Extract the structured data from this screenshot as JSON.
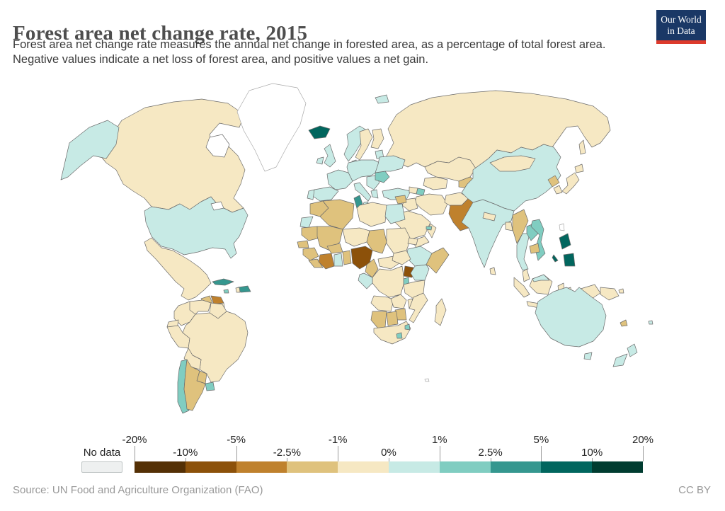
{
  "header": {
    "title": "Forest area net change rate, 2015",
    "subtitle_lines": [
      "Forest area net change rate measures the annual net change in forested area, as a percentage of total forest area.",
      "Negative values indicate a net loss of forest area, and positive values a net gain."
    ],
    "logo": {
      "line1": "Our World",
      "line2": "in Data",
      "bg_color": "#1a3866",
      "accent_color": "#dd3a2c"
    }
  },
  "footer": {
    "source": "Source: UN Food and Agriculture Organization (FAO)",
    "license": "CC BY"
  },
  "legend": {
    "no_data_label": "No data",
    "no_data_swatch_color": "#eef0f0",
    "tick_labels": [
      "-20%",
      "-10%",
      "-5%",
      "-2.5%",
      "-1%",
      "0%",
      "1%",
      "2.5%",
      "5%",
      "10%",
      "20%"
    ]
  },
  "chart_data": {
    "type": "choropleth-map",
    "title": "Forest area net change rate, 2015",
    "unit": "% per year",
    "no_data_color": "#ffffff",
    "bins": [
      {
        "range": "-20% to -10%",
        "color": "#543005"
      },
      {
        "range": "-10% to -5%",
        "color": "#8c510a"
      },
      {
        "range": "-5% to -2.5%",
        "color": "#bf812d"
      },
      {
        "range": "-2.5% to -1%",
        "color": "#dfc27d"
      },
      {
        "range": "-1% to 0%",
        "color": "#f6e8c3"
      },
      {
        "range": "0% to 1%",
        "color": "#c7eae5"
      },
      {
        "range": "1% to 2.5%",
        "color": "#80cdc1"
      },
      {
        "range": "2.5% to 5%",
        "color": "#35978f"
      },
      {
        "range": "5% to 10%",
        "color": "#01665e"
      },
      {
        "range": "10% to 20%",
        "color": "#003c30"
      }
    ],
    "countries": {
      "canada": "-1% to 0%",
      "united-states": "0% to 1%",
      "greenland": "No data",
      "mexico": "-1% to 0%",
      "guatemala": "-2.5% to -1%",
      "honduras": "-5% to -2.5%",
      "nicaragua": "-1% to 0%",
      "costa-rica": "2.5% to 5%",
      "panama": "1% to 2.5%",
      "cuba": "2.5% to 5%",
      "jamaica": "1% to 2.5%",
      "haiti": "-1% to 0%",
      "dominican-republic": "2.5% to 5%",
      "colombia": "-1% to 0%",
      "venezuela": "-1% to 0%",
      "guyana-suriname": "-1% to 0%",
      "ecuador": "-1% to 0%",
      "peru": "-1% to 0%",
      "brazil": "-1% to 0%",
      "bolivia": "-1% to 0%",
      "paraguay": "-2.5% to -1%",
      "argentina": "-2.5% to -1%",
      "chile": "1% to 2.5%",
      "uruguay": "1% to 2.5%",
      "iceland": "5% to 10%",
      "united-kingdom": "0% to 1%",
      "ireland": "0% to 1%",
      "norway": "0% to 1%",
      "sweden": "-1% to 0%",
      "finland": "-1% to 0%",
      "denmark": "0% to 1%",
      "baltics": "0% to 1%",
      "central-europe": "0% to 1%",
      "france": "0% to 1%",
      "spain": "0% to 1%",
      "portugal": "0% to 1%",
      "italy": "0% to 1%",
      "balkans": "0% to 1%",
      "greece": "0% to 1%",
      "romania": "1% to 2.5%",
      "ukraine": "0% to 1%",
      "turkey": "0% to 1%",
      "georgia-armenia": "-1% to 0%",
      "azerbaijan": "1% to 2.5%",
      "svalbard": "0% to 1%",
      "russia": "-1% to 0%",
      "kazakhstan": "-1% to 0%",
      "uzbekistan-turkmenistan": "-1% to 0%",
      "kyrgyzstan-tajikistan": "-2.5% to -1%",
      "afghanistan": "-1% to 0%",
      "iran": "-1% to 0%",
      "iraq": "-1% to 0%",
      "syria": "-2.5% to -1%",
      "israel": "1% to 2.5%",
      "jordan": "-1% to 0%",
      "saudi-arabia": "-1% to 0%",
      "yemen": "-1% to 0%",
      "oman": "-1% to 0%",
      "united-arab-emirates": "1% to 2.5%",
      "pakistan": "-5% to -2.5%",
      "india": "0% to 1%",
      "nepal": "-1% to 0%",
      "bangladesh": "-1% to 0%",
      "sri-lanka": "-1% to 0%",
      "china": "0% to 1%",
      "mongolia": "-1% to 0%",
      "north-korea": "-2.5% to -1%",
      "south-korea": "-1% to 0%",
      "japan": "-1% to 0%",
      "taiwan": "No data",
      "myanmar": "-2.5% to -1%",
      "thailand": "0% to 1%",
      "laos": "1% to 2.5%",
      "cambodia": "-2.5% to -1%",
      "vietnam": "1% to 2.5%",
      "malaysia": "-1% to 0%",
      "malaysia-borneo": "0% to 1%",
      "indonesia": "-1% to 0%",
      "philippines": "5% to 10%",
      "papua-new-guinea": "-1% to 0%",
      "australia": "0% to 1%",
      "new-zealand": "0% to 1%",
      "new-caledonia": "-2.5% to -1%",
      "fiji": "0% to 1%",
      "solomon-islands": "-1% to 0%",
      "morocco": "-2.5% to -1%",
      "western-sahara": "0% to 1%",
      "algeria": "-2.5% to -1%",
      "tunisia": "2.5% to 5%",
      "libya": "-1% to 0%",
      "egypt": "0% to 1%",
      "mauritania": "-2.5% to -1%",
      "mali": "-2.5% to -1%",
      "senegal": "-2.5% to -1%",
      "guinea": "-2.5% to -1%",
      "sierra-leone-liberia": "-2.5% to -1%",
      "cote-divoire": "-5% to -2.5%",
      "ghana": "0% to 1%",
      "togo-benin": "-2.5% to -1%",
      "burkina-faso": "-2.5% to -1%",
      "niger": "-1% to 0%",
      "nigeria": "-10% to -5%",
      "chad": "-2.5% to -1%",
      "sudan": "-1% to 0%",
      "eritrea": "-1% to 0%",
      "ethiopia": "0% to 1%",
      "somalia": "-2.5% to -1%",
      "cameroon": "-2.5% to -1%",
      "central-african-republic": "-1% to 0%",
      "south-sudan": "-1% to 0%",
      "uganda": "-10% to -5%",
      "kenya": "0% to 1%",
      "rwanda-burundi": "1% to 2.5%",
      "dr-congo": "-1% to 0%",
      "gabon-congo": "0% to 1%",
      "tanzania": "-1% to 0%",
      "angola": "-1% to 0%",
      "zambia": "-1% to 0%",
      "malawi": "-1% to 0%",
      "mozambique": "-1% to 0%",
      "zimbabwe": "-2.5% to -1%",
      "namibia": "-2.5% to -1%",
      "botswana": "-2.5% to -1%",
      "south-africa": "-1% to 0%",
      "lesotho": "1% to 2.5%",
      "eswatini": "1% to 2.5%",
      "madagascar": "-1% to 0%",
      "french-southern-territories": "No data"
    }
  }
}
